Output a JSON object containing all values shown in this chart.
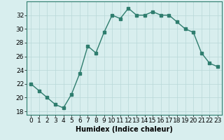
{
  "xlabel": "Humidex (Indice chaleur)",
  "x": [
    0,
    1,
    2,
    3,
    4,
    5,
    6,
    7,
    8,
    9,
    10,
    11,
    12,
    13,
    14,
    15,
    16,
    17,
    18,
    19,
    20,
    21,
    22,
    23
  ],
  "y": [
    22,
    21,
    20,
    19,
    18.5,
    20.5,
    23.5,
    27.5,
    26.5,
    29.5,
    32,
    31.5,
    33,
    32,
    32,
    32.5,
    32,
    32,
    31,
    30,
    29.5,
    26.5,
    25,
    24.5
  ],
  "line_color": "#2e7d6e",
  "marker": "s",
  "marker_size": 2.5,
  "bg_color": "#d8eeee",
  "grid_color": "#b8d8d8",
  "ylim": [
    17.5,
    34
  ],
  "xlim": [
    -0.5,
    23.5
  ],
  "yticks": [
    18,
    20,
    22,
    24,
    26,
    28,
    30,
    32
  ],
  "xticks": [
    0,
    1,
    2,
    3,
    4,
    5,
    6,
    7,
    8,
    9,
    10,
    11,
    12,
    13,
    14,
    15,
    16,
    17,
    18,
    19,
    20,
    21,
    22,
    23
  ],
  "label_fontsize": 7,
  "tick_fontsize": 6.5
}
